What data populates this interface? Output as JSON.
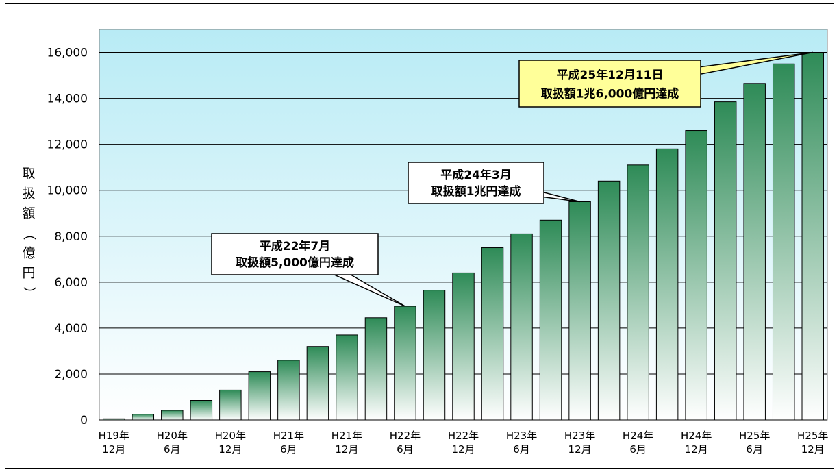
{
  "chart_data": {
    "type": "bar",
    "ylabel": "取扱額（億円）",
    "ylim": [
      0,
      17000
    ],
    "yticks": [
      0,
      2000,
      4000,
      6000,
      8000,
      10000,
      12000,
      14000,
      16000
    ],
    "ytick_labels": [
      "0",
      "2,000",
      "4,000",
      "6,000",
      "8,000",
      "10,000",
      "12,000",
      "14,000",
      "16,000"
    ],
    "grid": "horizontal",
    "x_tick_labels": [
      {
        "line1": "H19年",
        "line2": "12月"
      },
      {
        "line1": "H20年",
        "line2": "6月"
      },
      {
        "line1": "H20年",
        "line2": "12月"
      },
      {
        "line1": "H21年",
        "line2": "6月"
      },
      {
        "line1": "H21年",
        "line2": "12月"
      },
      {
        "line1": "H22年",
        "line2": "6月"
      },
      {
        "line1": "H22年",
        "line2": "12月"
      },
      {
        "line1": "H23年",
        "line2": "6月"
      },
      {
        "line1": "H23年",
        "line2": "12月"
      },
      {
        "line1": "H24年",
        "line2": "6月"
      },
      {
        "line1": "H24年",
        "line2": "12月"
      },
      {
        "line1": "H25年",
        "line2": "6月"
      },
      {
        "line1": "H25年",
        "line2": "12月"
      }
    ],
    "values": [
      50,
      250,
      420,
      850,
      1300,
      2100,
      2600,
      3200,
      3700,
      4450,
      4950,
      5650,
      6400,
      7500,
      8100,
      8700,
      9500,
      10400,
      11100,
      11800,
      12600,
      13850,
      14650,
      15500,
      16000
    ],
    "colors": {
      "plot_bg_top": "#b8ebf5",
      "plot_bg_bottom": "#ffffff",
      "bar_top": "#2e8b57",
      "bar_bottom": "#ffffff",
      "callout_fill_highlight": "#ffff99",
      "callout_fill": "#ffffff"
    },
    "annotations": [
      {
        "line1": "平成22年7月",
        "line2": "取扱額5,000億円達成",
        "bar_index": 10,
        "highlight": false
      },
      {
        "line1": "平成24年3月",
        "line2": "取扱額1兆円達成",
        "bar_index": 16,
        "highlight": false
      },
      {
        "line1": "平成25年12月11日",
        "line2": "取扱額1兆6,000億円達成",
        "bar_index": 24,
        "highlight": true
      }
    ]
  }
}
